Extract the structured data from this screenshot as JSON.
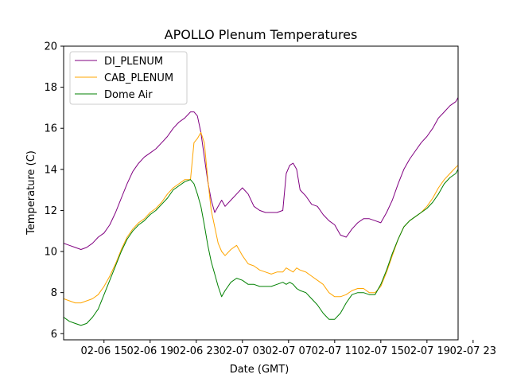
{
  "chart_data": {
    "type": "line",
    "title": "APOLLO Plenum Temperatures",
    "xlabel": "Date (GMT)",
    "ylabel": "Temperature (C)",
    "xlim": [
      0,
      34.2
    ],
    "ylim": [
      5.7,
      20
    ],
    "x_ticks": [
      {
        "x": 3.5,
        "label": "02-06 15"
      },
      {
        "x": 7.5,
        "label": "02-06 19"
      },
      {
        "x": 11.5,
        "label": "02-06 23"
      },
      {
        "x": 15.5,
        "label": "02-07 03"
      },
      {
        "x": 19.5,
        "label": "02-07 07"
      },
      {
        "x": 23.5,
        "label": "02-07 11"
      },
      {
        "x": 27.5,
        "label": "02-07 15"
      },
      {
        "x": 31.5,
        "label": "02-07 19"
      },
      {
        "x": 35.5,
        "label": "02-07 23"
      }
    ],
    "y_ticks": [
      6,
      8,
      10,
      12,
      14,
      16,
      18,
      20
    ],
    "grid": false,
    "legend_position": "top-left",
    "series": [
      {
        "name": "DI_PLENUM",
        "color": "#800080",
        "x": [
          0,
          0.5,
          1.0,
          1.5,
          2.0,
          2.5,
          3.0,
          3.5,
          4.0,
          4.5,
          5.0,
          5.5,
          6.0,
          6.5,
          7.0,
          7.5,
          8.0,
          8.5,
          9.0,
          9.5,
          10.0,
          10.5,
          11.0,
          11.3,
          11.6,
          11.9,
          12.2,
          12.5,
          12.8,
          13.1,
          13.4,
          13.7,
          14.0,
          14.5,
          15.0,
          15.5,
          16.0,
          16.5,
          17.0,
          17.5,
          18.0,
          18.5,
          19.0,
          19.3,
          19.6,
          19.9,
          20.2,
          20.5,
          21.0,
          21.5,
          22.0,
          22.5,
          23.0,
          23.5,
          24.0,
          24.5,
          25.0,
          25.5,
          26.0,
          26.5,
          27.0,
          27.5,
          28.0,
          28.5,
          29.0,
          29.5,
          30.0,
          30.5,
          31.0,
          31.5,
          32.0,
          32.5,
          33.0,
          33.5,
          34.0,
          34.2
        ],
        "values": [
          10.4,
          10.3,
          10.2,
          10.1,
          10.2,
          10.4,
          10.7,
          10.9,
          11.3,
          11.9,
          12.6,
          13.3,
          13.9,
          14.3,
          14.6,
          14.8,
          15.0,
          15.3,
          15.6,
          16.0,
          16.3,
          16.5,
          16.8,
          16.8,
          16.6,
          15.8,
          14.6,
          13.4,
          12.5,
          11.9,
          12.2,
          12.5,
          12.2,
          12.5,
          12.8,
          13.1,
          12.8,
          12.2,
          12.0,
          11.9,
          11.9,
          11.9,
          12.0,
          13.8,
          14.2,
          14.3,
          14.0,
          13.0,
          12.7,
          12.3,
          12.2,
          11.8,
          11.5,
          11.3,
          10.8,
          10.7,
          11.1,
          11.4,
          11.6,
          11.6,
          11.5,
          11.4,
          11.9,
          12.5,
          13.3,
          14.0,
          14.5,
          14.9,
          15.3,
          15.6,
          16.0,
          16.5,
          16.8,
          17.1,
          17.3,
          17.5
        ]
      },
      {
        "name": "CAB_PLENUM",
        "color": "#FFA500",
        "x": [
          0,
          0.5,
          1.0,
          1.5,
          2.0,
          2.5,
          3.0,
          3.5,
          4.0,
          4.5,
          5.0,
          5.5,
          6.0,
          6.5,
          7.0,
          7.5,
          8.0,
          8.5,
          9.0,
          9.5,
          10.0,
          10.5,
          11.0,
          11.3,
          11.6,
          11.9,
          12.2,
          12.5,
          12.8,
          13.1,
          13.4,
          13.7,
          14.0,
          14.5,
          15.0,
          15.5,
          16.0,
          16.5,
          17.0,
          17.5,
          18.0,
          18.5,
          19.0,
          19.3,
          19.6,
          19.9,
          20.2,
          20.5,
          21.0,
          21.5,
          22.0,
          22.5,
          23.0,
          23.5,
          24.0,
          24.5,
          25.0,
          25.5,
          26.0,
          26.5,
          27.0,
          27.5,
          28.0,
          28.5,
          29.0,
          29.5,
          30.0,
          30.5,
          31.0,
          31.5,
          32.0,
          32.5,
          33.0,
          33.5,
          34.0,
          34.2
        ],
        "values": [
          7.7,
          7.6,
          7.5,
          7.5,
          7.6,
          7.7,
          7.9,
          8.3,
          8.8,
          9.4,
          10.1,
          10.7,
          11.1,
          11.4,
          11.6,
          11.9,
          12.1,
          12.4,
          12.8,
          13.1,
          13.3,
          13.5,
          13.5,
          15.3,
          15.5,
          15.8,
          15.3,
          13.5,
          12.0,
          11.2,
          10.4,
          10.0,
          9.8,
          10.1,
          10.3,
          9.8,
          9.4,
          9.3,
          9.1,
          9.0,
          8.9,
          9.0,
          9.0,
          9.2,
          9.1,
          9.0,
          9.2,
          9.1,
          9.0,
          8.8,
          8.6,
          8.4,
          8.0,
          7.8,
          7.8,
          7.9,
          8.1,
          8.2,
          8.2,
          8.0,
          8.0,
          8.3,
          9.0,
          9.8,
          10.6,
          11.2,
          11.5,
          11.7,
          11.9,
          12.2,
          12.6,
          13.1,
          13.5,
          13.8,
          14.1,
          14.2
        ]
      },
      {
        "name": "Dome Air",
        "color": "#008000",
        "x": [
          0,
          0.5,
          1.0,
          1.5,
          2.0,
          2.5,
          3.0,
          3.5,
          4.0,
          4.5,
          5.0,
          5.5,
          6.0,
          6.5,
          7.0,
          7.5,
          8.0,
          8.5,
          9.0,
          9.5,
          10.0,
          10.5,
          11.0,
          11.3,
          11.6,
          11.9,
          12.2,
          12.5,
          12.8,
          13.1,
          13.4,
          13.7,
          14.0,
          14.5,
          15.0,
          15.5,
          16.0,
          16.5,
          17.0,
          17.5,
          18.0,
          18.5,
          19.0,
          19.3,
          19.6,
          19.9,
          20.2,
          20.5,
          21.0,
          21.5,
          22.0,
          22.5,
          23.0,
          23.5,
          24.0,
          24.5,
          25.0,
          25.5,
          26.0,
          26.5,
          27.0,
          27.5,
          28.0,
          28.5,
          29.0,
          29.5,
          30.0,
          30.5,
          31.0,
          31.5,
          32.0,
          32.5,
          33.0,
          33.5,
          34.0,
          34.2
        ],
        "values": [
          6.8,
          6.6,
          6.5,
          6.4,
          6.5,
          6.8,
          7.2,
          7.9,
          8.6,
          9.3,
          10.0,
          10.6,
          11.0,
          11.3,
          11.5,
          11.8,
          12.0,
          12.3,
          12.6,
          13.0,
          13.2,
          13.4,
          13.5,
          13.3,
          12.8,
          12.2,
          11.3,
          10.3,
          9.5,
          8.9,
          8.3,
          7.8,
          8.1,
          8.5,
          8.7,
          8.6,
          8.4,
          8.4,
          8.3,
          8.3,
          8.3,
          8.4,
          8.5,
          8.4,
          8.5,
          8.4,
          8.2,
          8.1,
          8.0,
          7.7,
          7.4,
          7.0,
          6.7,
          6.7,
          7.0,
          7.5,
          7.9,
          8.0,
          8.0,
          7.9,
          7.9,
          8.4,
          9.1,
          9.9,
          10.6,
          11.2,
          11.5,
          11.7,
          11.9,
          12.1,
          12.4,
          12.8,
          13.3,
          13.6,
          13.8,
          14.0
        ]
      }
    ]
  }
}
